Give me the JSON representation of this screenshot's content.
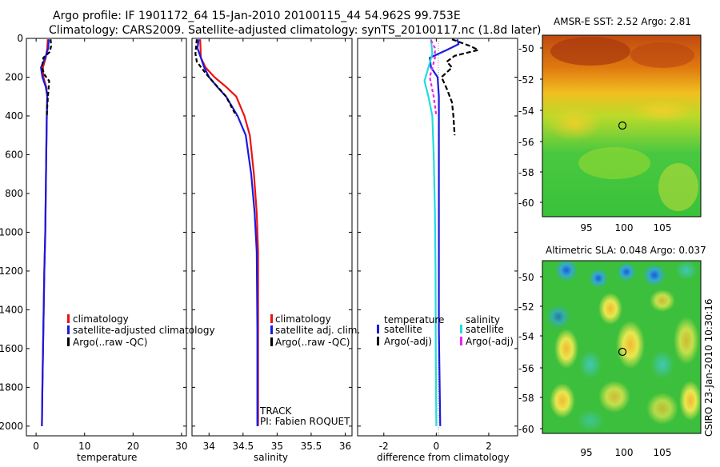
{
  "header": {
    "title_line1": "Argo profile: IF 1901172_64 15-Jan-2010 20100115_44 54.962S 99.753E",
    "title_line2": "Climatology: CARS2009. Satellite-adjusted climatology: synTS_20100117.nc (1.8d later)"
  },
  "credit": "CSIRO 23-Jan-2010 10:30:16",
  "colors": {
    "red": "#ee1111",
    "blue": "#1a1adf",
    "black": "#000000",
    "cyan": "#22dddd",
    "magenta": "#ee22ee"
  },
  "chart_data": [
    {
      "id": "temperature",
      "type": "line",
      "xlabel": "temperature",
      "xlim": [
        -2,
        31
      ],
      "xticks": [
        0,
        10,
        20,
        30
      ],
      "xtick_labels": [
        "0",
        "10",
        "20",
        "30"
      ],
      "ylim": [
        0,
        2050
      ],
      "yticks": [
        0,
        200,
        400,
        600,
        800,
        1000,
        1200,
        1400,
        1600,
        1800,
        2000
      ],
      "ytick_labels": [
        "0",
        "200",
        "400",
        "600",
        "800",
        "1000",
        "1200",
        "1400",
        "1600",
        "1800",
        "2000"
      ],
      "legend": [
        "climatology",
        "satellite-adjusted climatology",
        "Argo(..raw -QC)"
      ],
      "series": [
        {
          "name": "climatology",
          "color": "red",
          "dash": "",
          "points": [
            [
              2.4,
              5
            ],
            [
              2.3,
              50
            ],
            [
              2.0,
              100
            ],
            [
              1.4,
              150
            ],
            [
              1.5,
              200
            ],
            [
              2.1,
              250
            ],
            [
              2.3,
              300
            ],
            [
              2.2,
              400
            ],
            [
              2.1,
              600
            ],
            [
              2.0,
              800
            ],
            [
              1.9,
              1000
            ],
            [
              1.7,
              1200
            ],
            [
              1.5,
              1500
            ],
            [
              1.3,
              1800
            ],
            [
              1.2,
              2000
            ]
          ]
        },
        {
          "name": "satellite-adjusted climatology",
          "color": "blue",
          "dash": "",
          "points": [
            [
              2.6,
              5
            ],
            [
              2.5,
              50
            ],
            [
              1.9,
              100
            ],
            [
              1.0,
              150
            ],
            [
              1.3,
              200
            ],
            [
              2.0,
              250
            ],
            [
              2.3,
              300
            ],
            [
              2.2,
              400
            ],
            [
              2.1,
              600
            ],
            [
              2.0,
              800
            ],
            [
              1.9,
              1000
            ],
            [
              1.7,
              1200
            ],
            [
              1.5,
              1500
            ],
            [
              1.3,
              1800
            ],
            [
              1.2,
              2000
            ]
          ]
        },
        {
          "name": "Argo(..raw -QC)",
          "color": "black",
          "dash": "5,3",
          "points": [
            [
              3.0,
              5
            ],
            [
              3.1,
              40
            ],
            [
              2.8,
              70
            ],
            [
              1.5,
              100
            ],
            [
              1.2,
              150
            ],
            [
              1.8,
              190
            ],
            [
              2.7,
              220
            ],
            [
              2.5,
              280
            ],
            [
              2.3,
              350
            ],
            [
              2.2,
              400
            ]
          ]
        }
      ]
    },
    {
      "id": "salinity",
      "type": "line",
      "xlabel": "salinity",
      "xlim": [
        33.75,
        36.1
      ],
      "xticks": [
        34,
        34.5,
        35,
        35.5,
        36
      ],
      "xtick_labels": [
        "34",
        "34.5",
        "35",
        "35.5",
        "36"
      ],
      "ylim": [
        0,
        2050
      ],
      "yticks": [
        0,
        200,
        400,
        600,
        800,
        1000,
        1200,
        1400,
        1600,
        1800,
        2000
      ],
      "legend": [
        "climatology",
        "satellite adj. clim.",
        "Argo(..raw -QC)"
      ],
      "annotations": [
        "TRACK",
        "PI: Fabien ROQUET"
      ],
      "series": [
        {
          "name": "climatology",
          "color": "red",
          "dash": "",
          "points": [
            [
              33.87,
              5
            ],
            [
              33.88,
              100
            ],
            [
              33.95,
              150
            ],
            [
              34.08,
              200
            ],
            [
              34.25,
              250
            ],
            [
              34.4,
              300
            ],
            [
              34.52,
              400
            ],
            [
              34.6,
              500
            ],
            [
              34.66,
              700
            ],
            [
              34.7,
              900
            ],
            [
              34.72,
              1100
            ],
            [
              34.72,
              1500
            ],
            [
              34.72,
              2000
            ]
          ]
        },
        {
          "name": "satellite adj. clim.",
          "color": "blue",
          "dash": "",
          "points": [
            [
              33.85,
              5
            ],
            [
              33.83,
              50
            ],
            [
              33.88,
              100
            ],
            [
              33.93,
              150
            ],
            [
              34.0,
              200
            ],
            [
              34.12,
              250
            ],
            [
              34.25,
              300
            ],
            [
              34.42,
              400
            ],
            [
              34.54,
              500
            ],
            [
              34.62,
              700
            ],
            [
              34.67,
              900
            ],
            [
              34.7,
              1100
            ],
            [
              34.71,
              1500
            ],
            [
              34.71,
              2000
            ]
          ]
        },
        {
          "name": "Argo(..raw -QC)",
          "color": "black",
          "dash": "5,3",
          "points": [
            [
              33.82,
              5
            ],
            [
              33.8,
              80
            ],
            [
              33.82,
              120
            ],
            [
              33.95,
              180
            ],
            [
              34.1,
              240
            ],
            [
              34.25,
              300
            ],
            [
              34.4,
              400
            ]
          ]
        }
      ]
    },
    {
      "id": "difference",
      "type": "line",
      "xlabel": "difference from climatology",
      "xlim": [
        -3,
        3.1
      ],
      "xticks": [
        -2,
        0,
        2
      ],
      "xtick_labels": [
        "-2",
        "0",
        "2"
      ],
      "ylim": [
        0,
        2050
      ],
      "yticks": [
        0,
        200,
        400,
        600,
        800,
        1000,
        1200,
        1400,
        1600,
        1800,
        2000
      ],
      "legend": {
        "temperature_heading": "temperature",
        "salinity_heading": "salinity",
        "temperature": [
          "satellite",
          "Argo(-adj)"
        ],
        "salinity": [
          "satellite",
          "Argo(-adj)"
        ]
      },
      "series": [
        {
          "name": "temperature satellite",
          "color": "blue",
          "dash": "",
          "points": [
            [
              0.8,
              5
            ],
            [
              0.85,
              30
            ],
            [
              0.4,
              60
            ],
            [
              -0.25,
              100
            ],
            [
              -0.2,
              150
            ],
            [
              0.05,
              200
            ],
            [
              0.1,
              300
            ],
            [
              0.1,
              500
            ],
            [
              0.1,
              1000
            ],
            [
              0.1,
              1500
            ],
            [
              0.15,
              2000
            ]
          ]
        },
        {
          "name": "temperature Argo(-adj)",
          "color": "black",
          "dash": "6,3",
          "points": [
            [
              0.6,
              5
            ],
            [
              1.3,
              40
            ],
            [
              1.6,
              60
            ],
            [
              0.7,
              90
            ],
            [
              0.4,
              120
            ],
            [
              0.6,
              150
            ],
            [
              0.2,
              200
            ],
            [
              0.4,
              260
            ],
            [
              0.6,
              330
            ],
            [
              0.65,
              400
            ],
            [
              0.7,
              500
            ]
          ]
        },
        {
          "name": "salinity satellite",
          "color": "cyan",
          "dash": "",
          "points": [
            [
              -0.2,
              5
            ],
            [
              -0.15,
              80
            ],
            [
              -0.3,
              150
            ],
            [
              -0.45,
              220
            ],
            [
              -0.3,
              300
            ],
            [
              -0.15,
              400
            ],
            [
              -0.1,
              600
            ],
            [
              -0.05,
              900
            ],
            [
              -0.03,
              1200
            ],
            [
              -0.02,
              1600
            ],
            [
              0.0,
              2000
            ]
          ]
        },
        {
          "name": "salinity Argo(-adj)",
          "color": "magenta",
          "dash": "4,3",
          "points": [
            [
              -0.2,
              10
            ],
            [
              -0.05,
              50
            ],
            [
              -0.05,
              100
            ],
            [
              -0.25,
              200
            ],
            [
              -0.1,
              300
            ],
            [
              0.0,
              400
            ]
          ]
        }
      ]
    }
  ],
  "maps": [
    {
      "id": "sst",
      "title": "AMSR-E SST: 2.52 Argo: 2.81",
      "xticks": [
        "95",
        "100",
        "105"
      ],
      "yticks": [
        "-50",
        "-52",
        "-54",
        "-56",
        "-58",
        "-60"
      ],
      "marker": {
        "lon": 99.75,
        "lat": -54.96
      }
    },
    {
      "id": "sla",
      "title": "Altimetric SLA: 0.048 Argo: 0.037",
      "xticks": [
        "95",
        "100",
        "105"
      ],
      "yticks": [
        "-50",
        "-52",
        "-54",
        "-56",
        "-58",
        "-60"
      ],
      "marker": {
        "lon": 99.75,
        "lat": -54.96
      }
    }
  ]
}
